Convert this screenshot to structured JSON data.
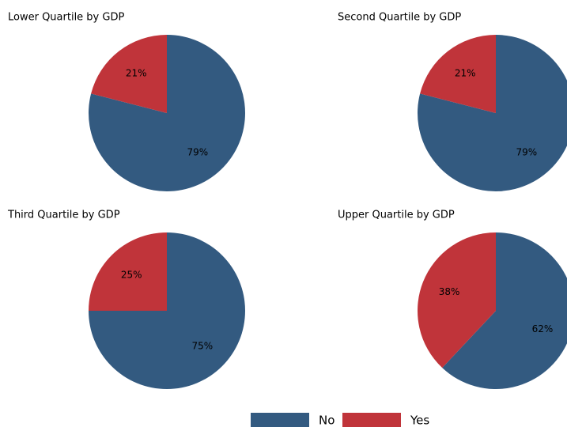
{
  "chart_data": [
    {
      "type": "pie",
      "title": "Lower Quartile by GDP",
      "categories": [
        "No",
        "Yes"
      ],
      "values": [
        79,
        21
      ],
      "value_labels": [
        "79%",
        "21%"
      ],
      "colors": [
        "#335a80",
        "#c0343a"
      ]
    },
    {
      "type": "pie",
      "title": "Second Quartile by GDP",
      "categories": [
        "No",
        "Yes"
      ],
      "values": [
        79,
        21
      ],
      "value_labels": [
        "79%",
        "21%"
      ],
      "colors": [
        "#335a80",
        "#c0343a"
      ]
    },
    {
      "type": "pie",
      "title": "Third Quartile by GDP",
      "categories": [
        "No",
        "Yes"
      ],
      "values": [
        75,
        25
      ],
      "value_labels": [
        "75%",
        "25%"
      ],
      "colors": [
        "#335a80",
        "#c0343a"
      ]
    },
    {
      "type": "pie",
      "title": "Upper Quartile by GDP",
      "categories": [
        "No",
        "Yes"
      ],
      "values": [
        62,
        38
      ],
      "value_labels": [
        "62%",
        "38%"
      ],
      "colors": [
        "#335a80",
        "#c0343a"
      ]
    }
  ]
}
